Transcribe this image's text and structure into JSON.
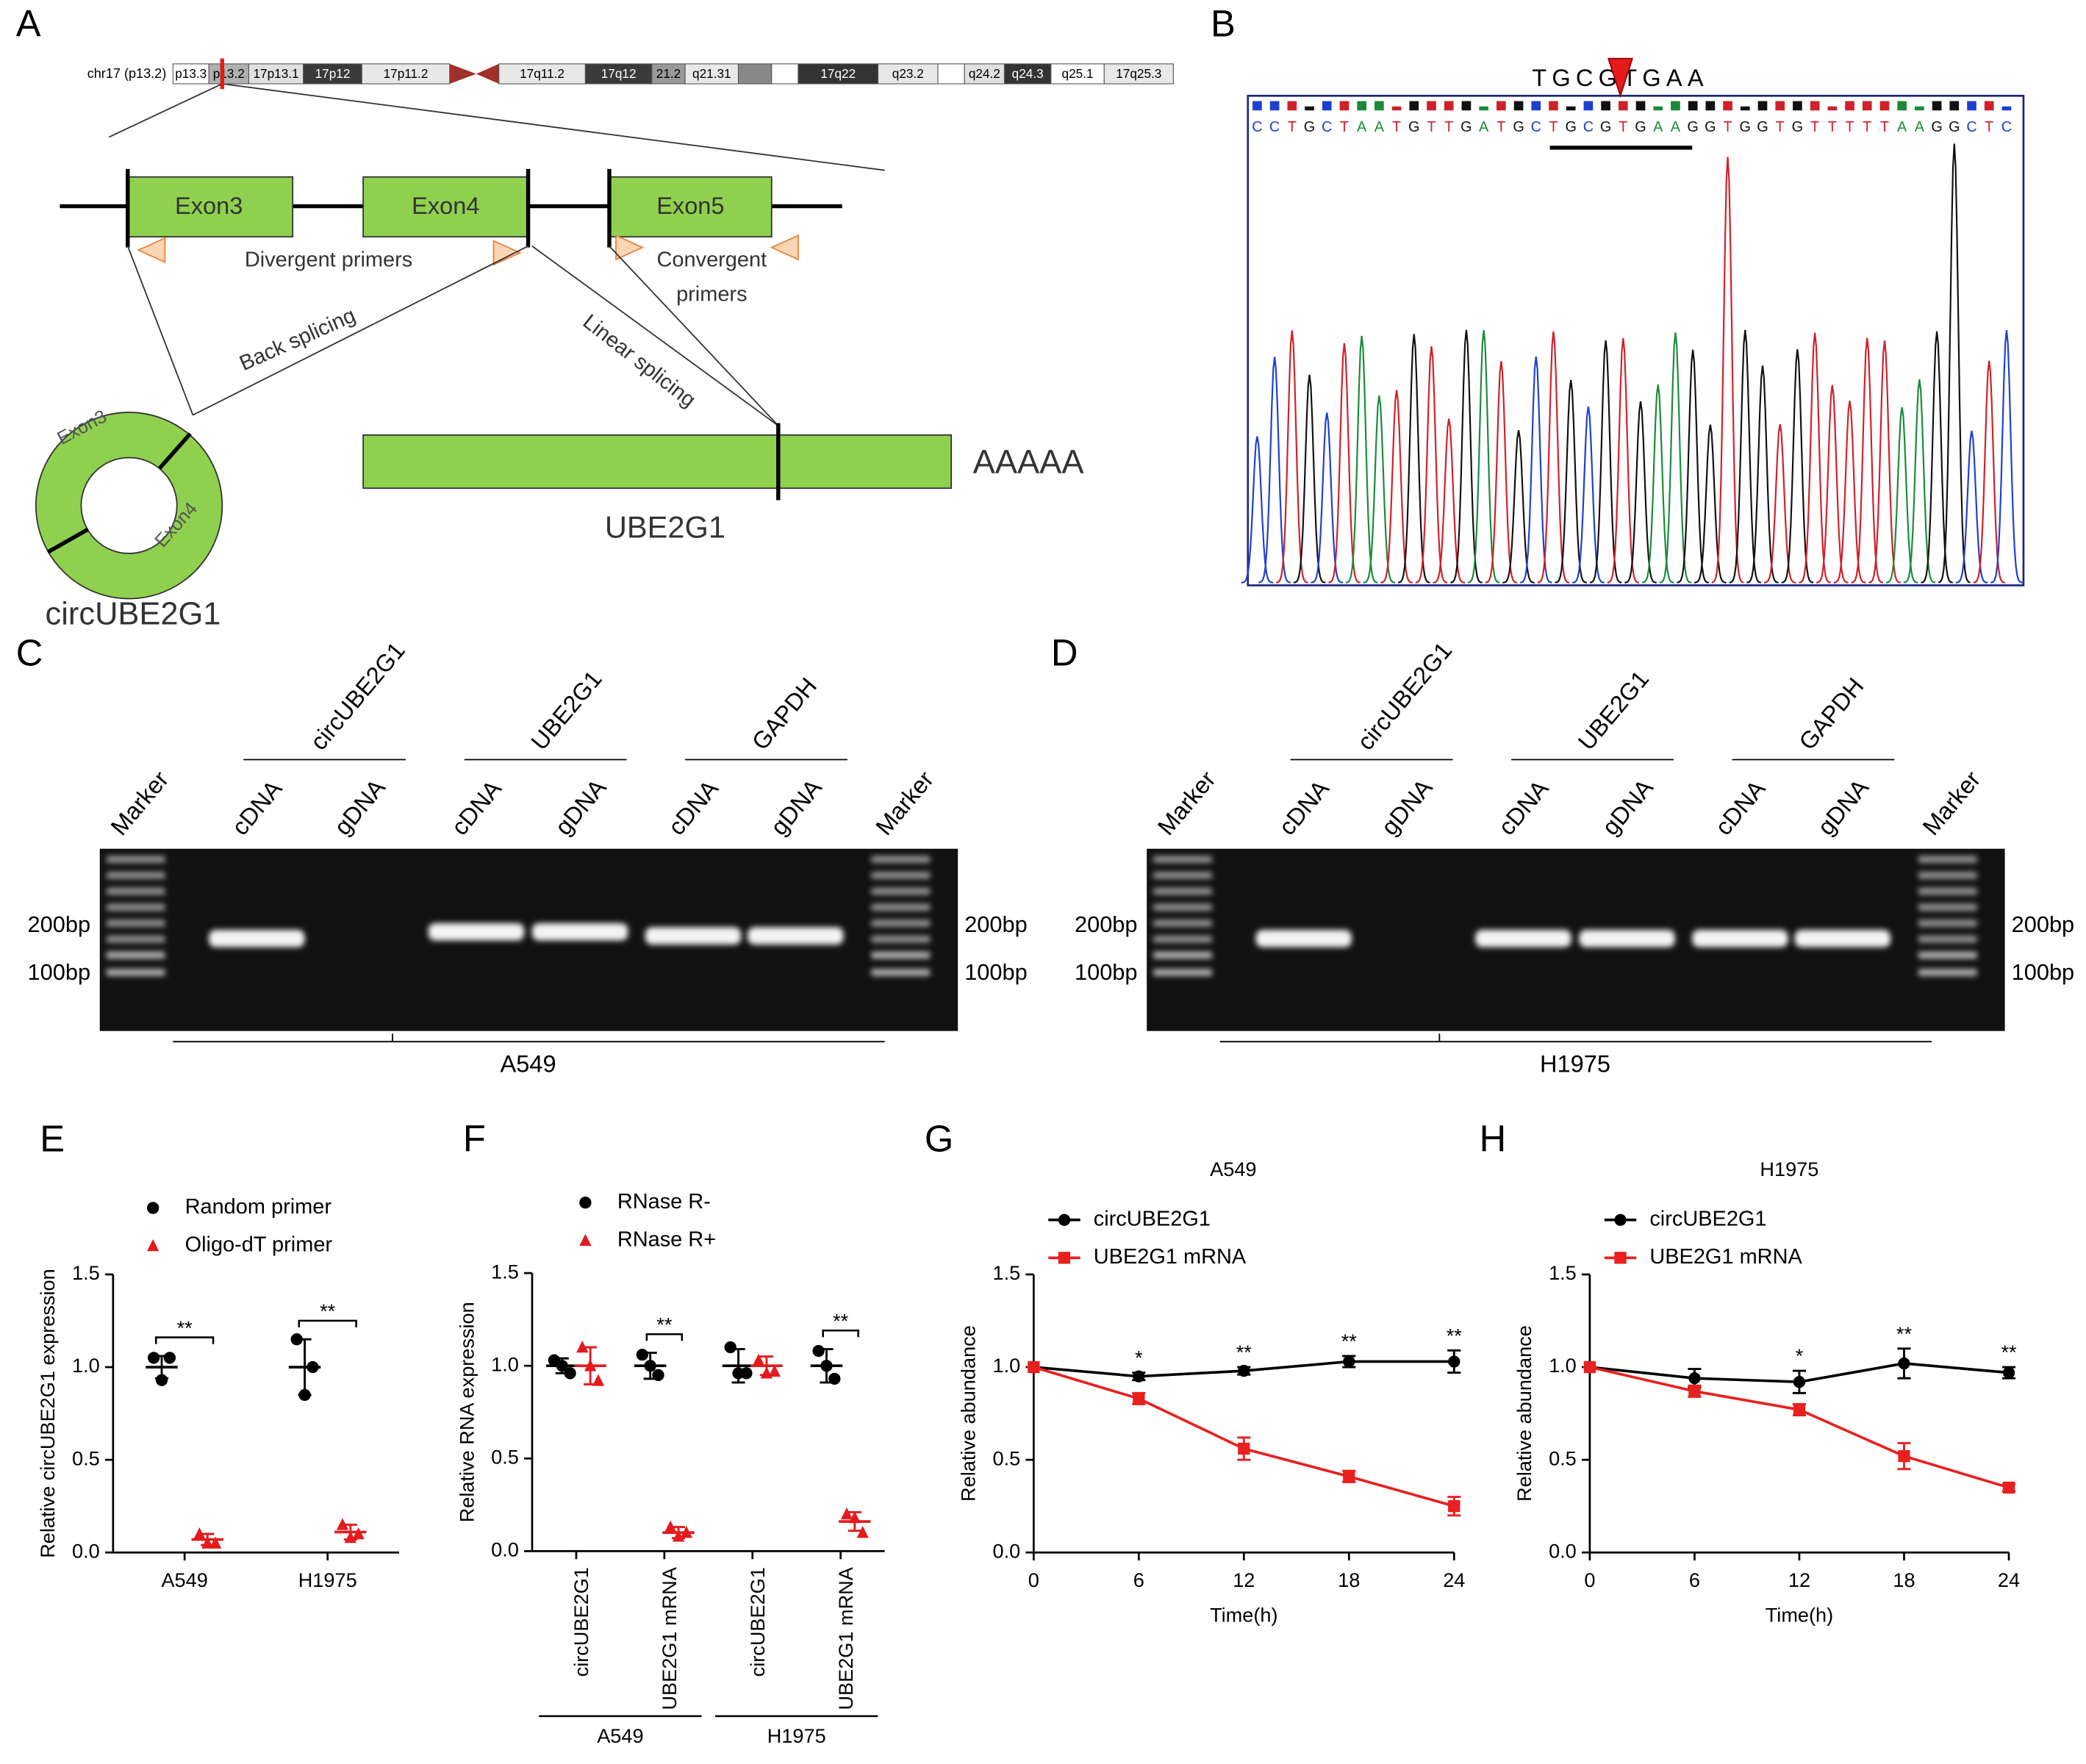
{
  "panel_labels": [
    "A",
    "B",
    "C",
    "D",
    "E",
    "F",
    "G",
    "H"
  ],
  "panel_a": {
    "chromosome": {
      "name": "chr17 (p13.2)",
      "bands": [
        {
          "label": "p13.3",
          "color": "#ffffff"
        },
        {
          "label": "p13.2",
          "color": "#b0b0b0"
        },
        {
          "label": "17p13.1",
          "color": "#e0e0e0"
        },
        {
          "label": "17p12",
          "color": "#3a3a3a"
        },
        {
          "label": "17p11.2",
          "color": "#e8e8e8"
        },
        {
          "label": "17q11.2",
          "color": "#e8e8e8"
        },
        {
          "label": "17q12",
          "color": "#3a3a3a"
        },
        {
          "label": "21.2",
          "color": "#999999"
        },
        {
          "label": "q21.31",
          "color": "#e8e8e8"
        },
        {
          "color": "#888888"
        },
        {
          "color": "#ffffff"
        },
        {
          "label": "17q22",
          "color": "#333333"
        },
        {
          "label": "q23.2",
          "color": "#e8e8e8"
        },
        {
          "color": "#ffffff"
        },
        {
          "label": "q24.2",
          "color": "#e0e0e0"
        },
        {
          "label": "q24.3",
          "color": "#333333"
        },
        {
          "label": "q25.1",
          "color": "#ffffff"
        },
        {
          "label": "17q25.3",
          "color": "#e8e8e8"
        }
      ]
    },
    "exons": [
      "Exon3",
      "Exon4",
      "Exon5"
    ],
    "divergent": "Divergent primers",
    "convergent": [
      "Convergent",
      "primers"
    ],
    "back_splicing": "Back splicing",
    "linear_splicing": "Linear splicing",
    "circ_exons": [
      "Exon3",
      "Exon4"
    ],
    "poly_a": "AAAAA",
    "linear_name": "UBE2G1",
    "circ_name": "circUBE2G1"
  },
  "panel_b": {
    "junction": "TGCGTGAA",
    "sequence": "CCTGCTAATGTTGATGCTGCGTGAAGGTGGTGTTTTTAAGGCTC"
  },
  "panel_c": {
    "groups": [
      "circUBE2G1",
      "UBE2G1",
      "GAPDH"
    ],
    "lanes": [
      "Marker",
      "cDNA",
      "gDNA",
      "cDNA",
      "gDNA",
      "cDNA",
      "gDNA",
      "Marker"
    ],
    "sizes": [
      "200bp",
      "100bp"
    ],
    "cell_line": "A549"
  },
  "panel_d": {
    "groups": [
      "circUBE2G1",
      "UBE2G1",
      "GAPDH"
    ],
    "lanes": [
      "Marker",
      "cDNA",
      "gDNA",
      "cDNA",
      "gDNA",
      "cDNA",
      "gDNA",
      "Marker"
    ],
    "sizes": [
      "200bp",
      "100bp"
    ],
    "cell_line": "H1975"
  },
  "chart_data": [
    {
      "type": "dot",
      "ylabel": "Relative circUBE2G1 expression",
      "categories": [
        "A549",
        "H1975"
      ],
      "ylim": [
        0,
        1.5
      ],
      "yticks": [
        {
          "value": 0,
          "label": "0.0"
        },
        0.5,
        {
          "value": 1,
          "label": "1.0"
        },
        1.5
      ],
      "annotations": [
        "**",
        "**"
      ],
      "series": [
        {
          "name": "Random primer",
          "color": "#000000",
          "marker": "circle",
          "values": [
            1.0,
            1.0
          ],
          "errors": [
            0.06,
            0.15
          ],
          "points": [
            [
              1.05,
              1.05,
              0.93
            ],
            [
              1.15,
              1.0,
              0.85
            ]
          ]
        },
        {
          "name": "Oligo-dT primer",
          "color": "#e41a1c",
          "marker": "triangle",
          "values": [
            0.07,
            0.11
          ],
          "errors": [
            0.03,
            0.04
          ],
          "points": [
            [
              0.1,
              0.05,
              0.05
            ],
            [
              0.15,
              0.1,
              0.08
            ]
          ]
        }
      ]
    },
    {
      "type": "dot",
      "ylabel": "Relative RNA expression",
      "categories": [
        "circUBE2G1",
        "UBE2G1 mRNA",
        "circUBE2G1",
        "UBE2G1 mRNA"
      ],
      "groups": [
        "A549",
        "H1975"
      ],
      "ylim": [
        0,
        1.5
      ],
      "yticks": [
        {
          "value": 0,
          "label": "0.0"
        },
        0.5,
        {
          "value": 1,
          "label": "1.0"
        },
        1.5
      ],
      "annotations": [
        null,
        "**",
        null,
        "**"
      ],
      "series": [
        {
          "name": "RNase R-",
          "color": "#000000",
          "marker": "circle",
          "values": [
            1.0,
            1.0,
            1.0,
            1.0
          ],
          "errors": [
            0.04,
            0.07,
            0.09,
            0.09
          ],
          "points": [
            [
              1.03,
              0.96,
              1.0
            ],
            [
              1.06,
              0.95,
              1.0
            ],
            [
              1.1,
              0.96,
              0.96
            ],
            [
              1.08,
              0.93,
              1.0
            ]
          ]
        },
        {
          "name": "RNase R+",
          "color": "#e41a1c",
          "marker": "triangle",
          "values": [
            1.0,
            0.1,
            1.0,
            0.16
          ],
          "errors": [
            0.1,
            0.03,
            0.05,
            0.05
          ],
          "points": [
            [
              1.1,
              0.92,
              1.0
            ],
            [
              0.13,
              0.1,
              0.08
            ],
            [
              1.03,
              0.97,
              0.96
            ],
            [
              0.2,
              0.1,
              0.18
            ]
          ]
        }
      ]
    },
    {
      "type": "line",
      "title": "A549",
      "xlabel": "Time(h)",
      "ylabel": "Relative abundance",
      "x": [
        0,
        6,
        12,
        18,
        24
      ],
      "xlim": [
        0,
        24
      ],
      "xticks": [
        0,
        6,
        12,
        18,
        24
      ],
      "ylim": [
        0,
        1.5
      ],
      "yticks": [
        {
          "value": 0,
          "label": "0.0"
        },
        0.5,
        {
          "value": 1,
          "label": "1.0"
        },
        1.5
      ],
      "annotations": [
        null,
        "*",
        "**",
        "**",
        "**"
      ],
      "series": [
        {
          "name": "circUBE2G1",
          "color": "#000000",
          "marker": "circle",
          "values": [
            1.0,
            0.95,
            0.98,
            1.03,
            1.03
          ],
          "errors": [
            0,
            0.02,
            0.02,
            0.03,
            0.06
          ]
        },
        {
          "name": "UBE2G1 mRNA",
          "color": "#e8201f",
          "marker": "square",
          "values": [
            1.0,
            0.83,
            0.56,
            0.41,
            0.25
          ],
          "errors": [
            0,
            0.03,
            0.06,
            0.03,
            0.05
          ]
        }
      ]
    },
    {
      "type": "line",
      "title": "H1975",
      "xlabel": "Time(h)",
      "ylabel": "Relative abundance",
      "x": [
        0,
        6,
        12,
        18,
        24
      ],
      "xlim": [
        0,
        24
      ],
      "xticks": [
        0,
        6,
        12,
        18,
        24
      ],
      "ylim": [
        0,
        1.5
      ],
      "yticks": [
        {
          "value": 0,
          "label": "0.0"
        },
        0.5,
        {
          "value": 1,
          "label": "1.0"
        },
        1.5
      ],
      "annotations": [
        null,
        null,
        "*",
        "**",
        "**"
      ],
      "series": [
        {
          "name": "circUBE2G1",
          "color": "#000000",
          "marker": "circle",
          "values": [
            1.0,
            0.94,
            0.92,
            1.02,
            0.97
          ],
          "errors": [
            0,
            0.05,
            0.06,
            0.08,
            0.03
          ]
        },
        {
          "name": "UBE2G1 mRNA",
          "color": "#e8201f",
          "marker": "square",
          "values": [
            1.0,
            0.87,
            0.77,
            0.52,
            0.35
          ],
          "errors": [
            0,
            0.03,
            0.03,
            0.07,
            0.02
          ]
        }
      ]
    }
  ]
}
